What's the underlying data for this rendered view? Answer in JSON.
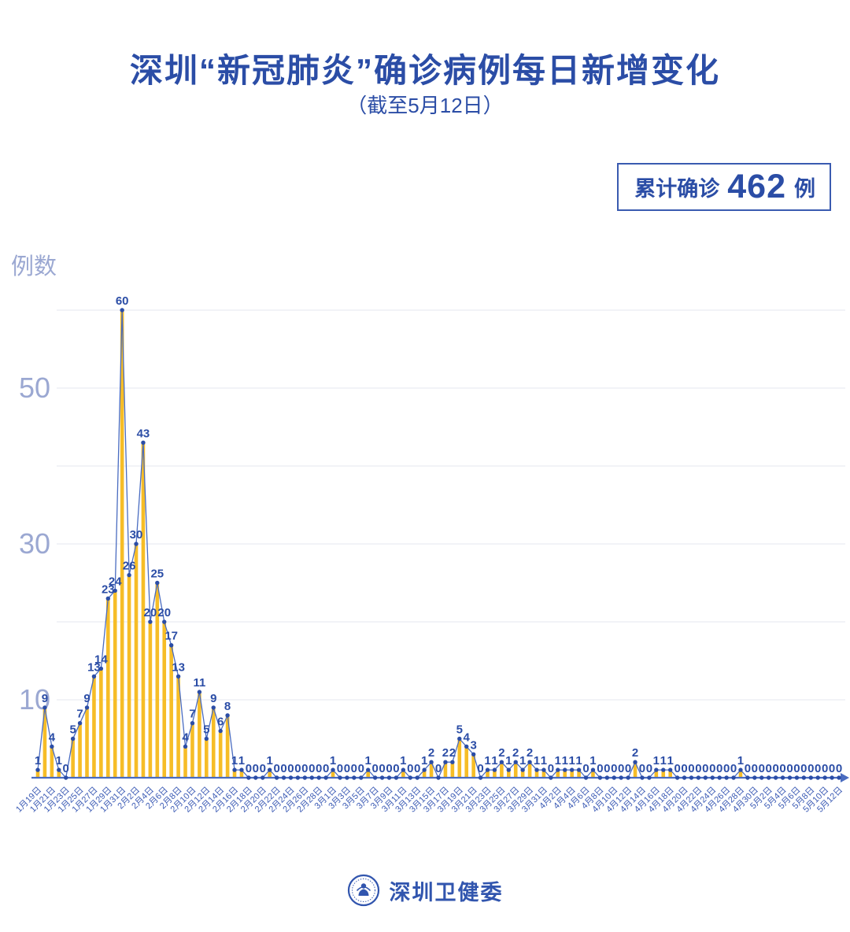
{
  "title": "深圳“新冠肺炎”确诊病例每日新增变化",
  "subtitle": "（截至5月12日）",
  "badge": {
    "prefix": "累计确诊",
    "value": "462",
    "suffix": "例"
  },
  "footer": {
    "org": "深圳卫健委",
    "logo_icon": "shenzhen-health-commission-emblem"
  },
  "colors": {
    "title_text": "#2B4DA6",
    "bar": "#F6BD27",
    "line": "#4A6CC0",
    "point": "#2B4DA6",
    "value_label": "#2B4DA6",
    "axis": "#4A6CC0",
    "axis_text": "#9BA8D2",
    "x_label": "#3D5CB5",
    "grid": "#EAECF2",
    "badge_border": "#3A5BB0"
  },
  "chart_data": {
    "type": "bar",
    "title": "深圳“新冠肺炎”确诊病例每日新增变化（截至5月12日）",
    "ylabel": "例数",
    "xlabel": "",
    "yticks": [
      10,
      30,
      50
    ],
    "gridlines": [
      10,
      20,
      30,
      40,
      50,
      60
    ],
    "ylim": [
      0,
      62
    ],
    "x_label_interval": 2,
    "legend": null,
    "total_label": "累计确诊462例",
    "categories": [
      "1月19日",
      "1月20日",
      "1月21日",
      "1月22日",
      "1月23日",
      "1月24日",
      "1月25日",
      "1月26日",
      "1月27日",
      "1月28日",
      "1月29日",
      "1月30日",
      "1月31日",
      "2月1日",
      "2月2日",
      "2月3日",
      "2月4日",
      "2月5日",
      "2月6日",
      "2月7日",
      "2月8日",
      "2月9日",
      "2月10日",
      "2月11日",
      "2月12日",
      "2月13日",
      "2月14日",
      "2月15日",
      "2月16日",
      "2月17日",
      "2月18日",
      "2月19日",
      "2月20日",
      "2月21日",
      "2月22日",
      "2月23日",
      "2月24日",
      "2月25日",
      "2月26日",
      "2月27日",
      "2月28日",
      "2月29日",
      "3月1日",
      "3月2日",
      "3月3日",
      "3月4日",
      "3月5日",
      "3月6日",
      "3月7日",
      "3月8日",
      "3月9日",
      "3月10日",
      "3月11日",
      "3月12日",
      "3月13日",
      "3月14日",
      "3月15日",
      "3月16日",
      "3月17日",
      "3月18日",
      "3月19日",
      "3月20日",
      "3月21日",
      "3月22日",
      "3月23日",
      "3月24日",
      "3月25日",
      "3月26日",
      "3月27日",
      "3月28日",
      "3月29日",
      "3月30日",
      "3月31日",
      "4月1日",
      "4月2日",
      "4月3日",
      "4月4日",
      "4月5日",
      "4月6日",
      "4月7日",
      "4月8日",
      "4月9日",
      "4月10日",
      "4月11日",
      "4月12日",
      "4月13日",
      "4月14日",
      "4月15日",
      "4月16日",
      "4月17日",
      "4月18日",
      "4月19日",
      "4月20日",
      "4月21日",
      "4月22日",
      "4月23日",
      "4月24日",
      "4月25日",
      "4月26日",
      "4月27日",
      "4月28日",
      "4月29日",
      "4月30日",
      "5月1日",
      "5月2日",
      "5月3日",
      "5月4日",
      "5月5日",
      "5月6日",
      "5月7日",
      "5月8日",
      "5月9日",
      "5月10日",
      "5月11日",
      "5月12日"
    ],
    "values": [
      1,
      9,
      4,
      1,
      0,
      5,
      7,
      9,
      13,
      14,
      23,
      24,
      60,
      26,
      30,
      43,
      20,
      25,
      20,
      17,
      13,
      4,
      7,
      11,
      5,
      9,
      6,
      8,
      1,
      1,
      0,
      0,
      0,
      1,
      0,
      0,
      0,
      0,
      0,
      0,
      0,
      0,
      1,
      0,
      0,
      0,
      0,
      1,
      0,
      0,
      0,
      0,
      1,
      0,
      0,
      1,
      2,
      0,
      2,
      2,
      5,
      4,
      3,
      0,
      1,
      1,
      2,
      1,
      2,
      1,
      2,
      1,
      1,
      0,
      1,
      1,
      1,
      1,
      0,
      1,
      0,
      0,
      0,
      0,
      0,
      2,
      0,
      0,
      1,
      1,
      1,
      0,
      0,
      0,
      0,
      0,
      0,
      0,
      0,
      0,
      1,
      0,
      0,
      0,
      0,
      0,
      0,
      0,
      0,
      0,
      0,
      0,
      0,
      0,
      0
    ]
  }
}
